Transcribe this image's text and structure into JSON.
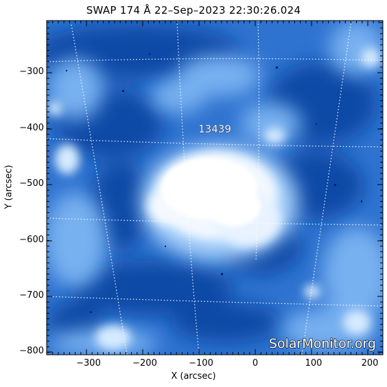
{
  "title": "SWAP 174 Å 22–Sep–2023 22:30:26.024",
  "xlabel": "X (arcsec)",
  "ylabel": "Y (arcsec)",
  "x_ticks": [
    "−300",
    "−200",
    "−100",
    "0",
    "100",
    "200"
  ],
  "y_ticks": [
    "−300",
    "−400",
    "−500",
    "−600",
    "−700",
    "−800"
  ],
  "region_label": "13439",
  "watermark": "SolarMonitor.org",
  "colors": {
    "deep": "#0a3e9a",
    "mid": "#2f7ad8",
    "light": "#7fb6f2",
    "white": "#ffffff"
  }
}
